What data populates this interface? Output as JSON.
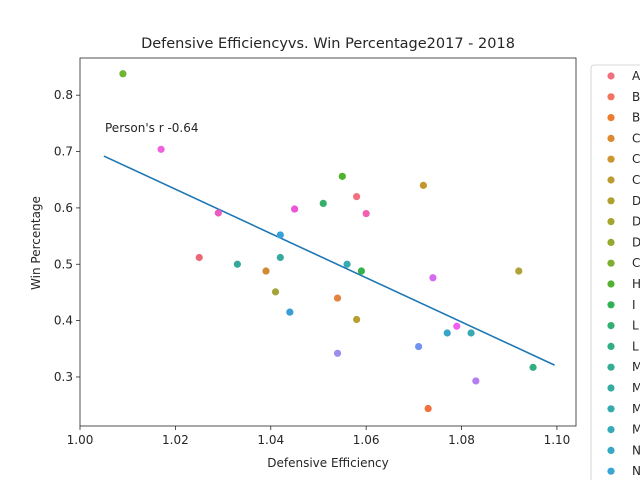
{
  "chart_data": {
    "type": "scatter",
    "title": "Defensive Efficiencyvs. Win Percentage2017 - 2018",
    "xlabel": "Defensive Efficiency",
    "ylabel": "Win Percentage",
    "xlim": [
      1.0,
      1.104
    ],
    "ylim": [
      0.213,
      0.866
    ],
    "xticks": [
      1.0,
      1.02,
      1.04,
      1.06,
      1.08,
      1.1
    ],
    "xtick_labels": [
      "1.00",
      "1.02",
      "1.04",
      "1.06",
      "1.08",
      "1.10"
    ],
    "yticks": [
      0.3,
      0.4,
      0.5,
      0.6,
      0.7,
      0.8
    ],
    "ytick_labels": [
      "0.3",
      "0.4",
      "0.5",
      "0.6",
      "0.7",
      "0.8"
    ],
    "grid": false,
    "legend_position": "right, outside plot, cropped",
    "annotation": "Person's r -0.64",
    "regression_line": {
      "x": [
        1.005,
        1.0995
      ],
      "y": [
        0.692,
        0.321
      ],
      "color": "#1f77b4"
    },
    "legend_entries": [
      {
        "label": "A",
        "color": "#f0707e"
      },
      {
        "label": "B",
        "color": "#f2745f"
      },
      {
        "label": "B",
        "color": "#ed7b30"
      },
      {
        "label": "C",
        "color": "#dc8a30"
      },
      {
        "label": "C",
        "color": "#cc9530"
      },
      {
        "label": "C",
        "color": "#bd9b30"
      },
      {
        "label": "D",
        "color": "#b0a030"
      },
      {
        "label": "D",
        "color": "#a4a530"
      },
      {
        "label": "D",
        "color": "#97a830"
      },
      {
        "label": "C",
        "color": "#80ae30"
      },
      {
        "label": "H",
        "color": "#50b230"
      },
      {
        "label": "I",
        "color": "#31b252"
      },
      {
        "label": "L",
        "color": "#33b071"
      },
      {
        "label": "L",
        "color": "#33ae84"
      },
      {
        "label": "M",
        "color": "#35ac94"
      },
      {
        "label": "M",
        "color": "#36aba0"
      },
      {
        "label": "M",
        "color": "#37aaad"
      },
      {
        "label": "M",
        "color": "#38a9b9"
      },
      {
        "label": "N",
        "color": "#39a7c6"
      },
      {
        "label": "N",
        "color": "#3aa4d5"
      }
    ],
    "points": [
      {
        "x": 1.009,
        "y": 0.838,
        "color": "#6fb432"
      },
      {
        "x": 1.017,
        "y": 0.704,
        "color": "#f061dd"
      },
      {
        "x": 1.029,
        "y": 0.591,
        "color": "#ec5bc0"
      },
      {
        "x": 1.025,
        "y": 0.512,
        "color": "#ec6877"
      },
      {
        "x": 1.033,
        "y": 0.5,
        "color": "#36a89a"
      },
      {
        "x": 1.039,
        "y": 0.488,
        "color": "#d28a33"
      },
      {
        "x": 1.041,
        "y": 0.451,
        "color": "#a4a43a"
      },
      {
        "x": 1.042,
        "y": 0.552,
        "color": "#3aa1d8"
      },
      {
        "x": 1.042,
        "y": 0.512,
        "color": "#37aa9e"
      },
      {
        "x": 1.044,
        "y": 0.415,
        "color": "#3b9dd6"
      },
      {
        "x": 1.045,
        "y": 0.598,
        "color": "#ec55d6"
      },
      {
        "x": 1.051,
        "y": 0.608,
        "color": "#33b06a"
      },
      {
        "x": 1.054,
        "y": 0.44,
        "color": "#e38340"
      },
      {
        "x": 1.054,
        "y": 0.342,
        "color": "#9a8fef"
      },
      {
        "x": 1.055,
        "y": 0.656,
        "color": "#4fb22f"
      },
      {
        "x": 1.056,
        "y": 0.5,
        "color": "#36aab0"
      },
      {
        "x": 1.058,
        "y": 0.62,
        "color": "#f26f7f"
      },
      {
        "x": 1.058,
        "y": 0.402,
        "color": "#b6a033"
      },
      {
        "x": 1.059,
        "y": 0.488,
        "color": "#35b04d"
      },
      {
        "x": 1.06,
        "y": 0.59,
        "color": "#f160ad"
      },
      {
        "x": 1.071,
        "y": 0.354,
        "color": "#6f93ef"
      },
      {
        "x": 1.072,
        "y": 0.64,
        "color": "#c2972e"
      },
      {
        "x": 1.073,
        "y": 0.244,
        "color": "#f0703e"
      },
      {
        "x": 1.074,
        "y": 0.476,
        "color": "#d36af0"
      },
      {
        "x": 1.077,
        "y": 0.378,
        "color": "#36a6c6"
      },
      {
        "x": 1.079,
        "y": 0.39,
        "color": "#f05ef3"
      },
      {
        "x": 1.082,
        "y": 0.378,
        "color": "#37aab1"
      },
      {
        "x": 1.083,
        "y": 0.293,
        "color": "#b47ef2"
      },
      {
        "x": 1.092,
        "y": 0.488,
        "color": "#aea238"
      },
      {
        "x": 1.095,
        "y": 0.317,
        "color": "#35ae7f"
      }
    ]
  }
}
